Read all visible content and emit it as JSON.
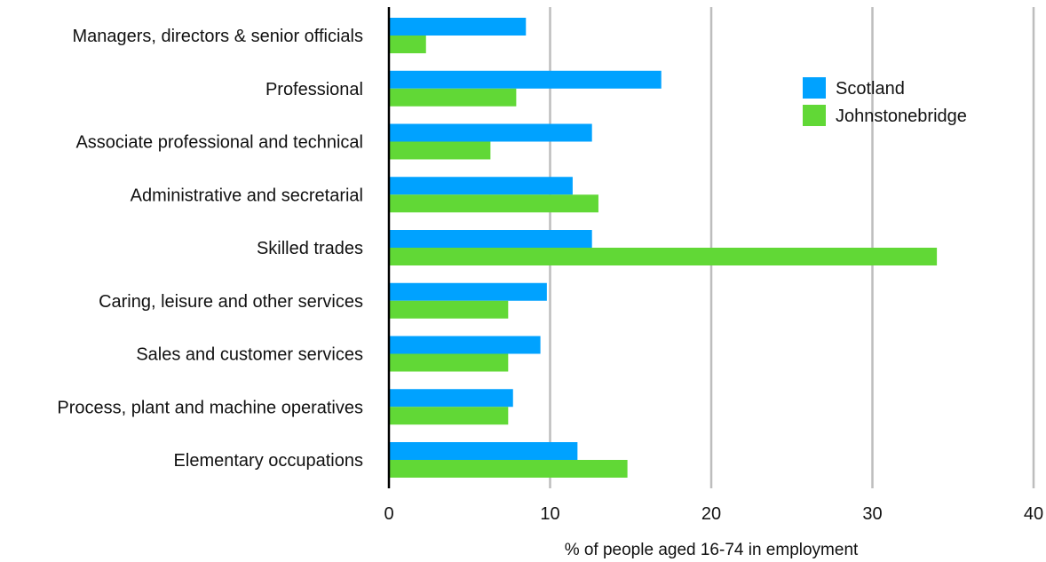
{
  "chart_data": {
    "type": "bar",
    "orientation": "horizontal",
    "categories": [
      "Managers, directors & senior officials",
      "Professional",
      "Associate professional and technical",
      "Administrative and secretarial",
      "Skilled trades",
      "Caring, leisure and other services",
      "Sales and customer services",
      "Process, plant and machine operatives",
      "Elementary occupations"
    ],
    "series": [
      {
        "name": "Scotland",
        "color": "#00A2FF",
        "values": [
          8.5,
          16.9,
          12.6,
          11.4,
          12.6,
          9.8,
          9.4,
          7.7,
          11.7
        ]
      },
      {
        "name": "Johnstonebridge",
        "color": "#61D836",
        "values": [
          2.3,
          7.9,
          6.3,
          13.0,
          34.0,
          7.4,
          7.4,
          7.4,
          14.8
        ]
      }
    ],
    "xlabel": "% of people aged 16-74 in employment",
    "ylabel": "",
    "xlim": [
      0,
      40
    ],
    "xticks": [
      0,
      10,
      20,
      30,
      40
    ],
    "grid": true,
    "legend_position": "top-right"
  }
}
